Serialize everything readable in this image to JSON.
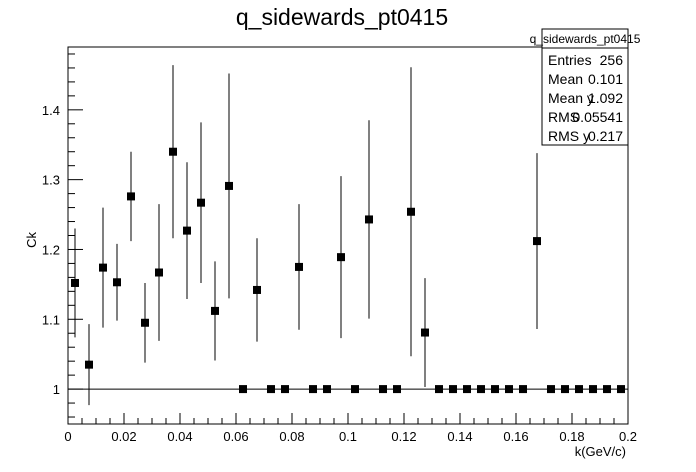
{
  "chart_data": {
    "type": "scatter",
    "title": "q_sidewards_pt0415",
    "xlabel": "k(GeV/c)",
    "ylabel": "Ck",
    "xlim": [
      0,
      0.2
    ],
    "ylim": [
      0.95,
      1.49
    ],
    "x_ticks": [
      0,
      0.02,
      0.04,
      0.06,
      0.08,
      0.1,
      0.12,
      0.14,
      0.16,
      0.18,
      0.2
    ],
    "x_tick_labels": [
      "0",
      "0.02",
      "0.04",
      "0.06",
      "0.08",
      "0.1",
      "0.12",
      "0.14",
      "0.16",
      "0.18",
      "0.2"
    ],
    "y_ticks": [
      1.0,
      1.1,
      1.2,
      1.3,
      1.4
    ],
    "y_tick_labels": [
      "1",
      "1.1",
      "1.2",
      "1.3",
      "1.4"
    ],
    "reference_line_y": 1.0,
    "grid": false,
    "marker": "filled-square",
    "color": "#000000",
    "series": [
      {
        "points": [
          {
            "x": 0.0025,
            "y": 1.152,
            "err": 0.078
          },
          {
            "x": 0.0075,
            "y": 1.035,
            "err": 0.058
          },
          {
            "x": 0.0125,
            "y": 1.174,
            "err": 0.086
          },
          {
            "x": 0.0175,
            "y": 1.153,
            "err": 0.055
          },
          {
            "x": 0.0225,
            "y": 1.276,
            "err": 0.064
          },
          {
            "x": 0.0275,
            "y": 1.095,
            "err": 0.057
          },
          {
            "x": 0.0325,
            "y": 1.167,
            "err": 0.098
          },
          {
            "x": 0.0375,
            "y": 1.34,
            "err": 0.124
          },
          {
            "x": 0.0425,
            "y": 1.227,
            "err": 0.098
          },
          {
            "x": 0.0475,
            "y": 1.267,
            "err": 0.115
          },
          {
            "x": 0.0525,
            "y": 1.112,
            "err": 0.071
          },
          {
            "x": 0.0575,
            "y": 1.291,
            "err": 0.161
          },
          {
            "x": 0.0625,
            "y": 1.0,
            "err": 0
          },
          {
            "x": 0.0675,
            "y": 1.142,
            "err": 0.074
          },
          {
            "x": 0.0725,
            "y": 1.0,
            "err": 0
          },
          {
            "x": 0.0775,
            "y": 1.0,
            "err": 0
          },
          {
            "x": 0.0825,
            "y": 1.175,
            "err": 0.09
          },
          {
            "x": 0.0875,
            "y": 1.0,
            "err": 0
          },
          {
            "x": 0.0925,
            "y": 1.0,
            "err": 0
          },
          {
            "x": 0.0975,
            "y": 1.189,
            "err": 0.116
          },
          {
            "x": 0.1025,
            "y": 1.0,
            "err": 0
          },
          {
            "x": 0.1075,
            "y": 1.243,
            "err": 0.142
          },
          {
            "x": 0.1125,
            "y": 1.0,
            "err": 0
          },
          {
            "x": 0.1175,
            "y": 1.0,
            "err": 0
          },
          {
            "x": 0.1225,
            "y": 1.254,
            "err": 0.207
          },
          {
            "x": 0.1275,
            "y": 1.081,
            "err": 0.078
          },
          {
            "x": 0.1325,
            "y": 1.0,
            "err": 0
          },
          {
            "x": 0.1375,
            "y": 1.0,
            "err": 0
          },
          {
            "x": 0.1425,
            "y": 1.0,
            "err": 0
          },
          {
            "x": 0.1475,
            "y": 1.0,
            "err": 0
          },
          {
            "x": 0.1525,
            "y": 1.0,
            "err": 0
          },
          {
            "x": 0.1575,
            "y": 1.0,
            "err": 0
          },
          {
            "x": 0.1625,
            "y": 1.0,
            "err": 0
          },
          {
            "x": 0.1675,
            "y": 1.212,
            "err": 0.126
          },
          {
            "x": 0.1725,
            "y": 1.0,
            "err": 0
          },
          {
            "x": 0.1775,
            "y": 1.0,
            "err": 0
          },
          {
            "x": 0.1825,
            "y": 1.0,
            "err": 0
          },
          {
            "x": 0.1875,
            "y": 1.0,
            "err": 0
          },
          {
            "x": 0.1925,
            "y": 1.0,
            "err": 0
          },
          {
            "x": 0.1975,
            "y": 1.0,
            "err": 0
          }
        ]
      }
    ],
    "stats_box": {
      "title": "q_sidewards_pt0415",
      "placement": "top-right",
      "rows": [
        {
          "label": "Entries",
          "value": "256"
        },
        {
          "label": "Mean",
          "value": "0.101"
        },
        {
          "label": "Mean y",
          "value": "1.092"
        },
        {
          "label": "RMS",
          "value": "0.05541"
        },
        {
          "label": "RMS y",
          "value": "0.217"
        }
      ]
    }
  }
}
